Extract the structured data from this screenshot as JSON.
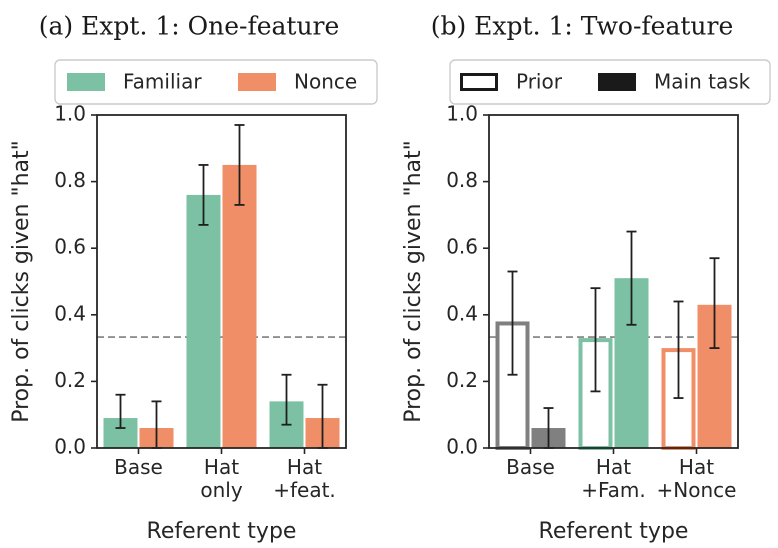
{
  "chart_data": [
    {
      "type": "bar",
      "title": "(a) Expt. 1: One-feature",
      "xlabel": "Referent type",
      "ylabel": "Prop. of clicks given \"hat\"",
      "ylim": [
        0,
        1
      ],
      "yticks": [
        "0.0",
        "0.2",
        "0.4",
        "0.6",
        "0.8",
        "1.0"
      ],
      "categories": [
        [
          "Base"
        ],
        [
          "Hat",
          "only"
        ],
        [
          "Hat",
          "+feat."
        ]
      ],
      "reference_line": 0.333,
      "legend_position": "top",
      "series": [
        {
          "name": "Familiar",
          "color": "#7cc1a4",
          "values": [
            0.09,
            0.76,
            0.14
          ],
          "error_low": [
            0.06,
            0.67,
            0.07
          ],
          "error_high": [
            0.16,
            0.85,
            0.22
          ]
        },
        {
          "name": "Nonce",
          "color": "#ef8e67",
          "values": [
            0.06,
            0.85,
            0.09
          ],
          "error_low": [
            0.0,
            0.73,
            0.0
          ],
          "error_high": [
            0.14,
            0.97,
            0.19
          ]
        }
      ]
    },
    {
      "type": "bar",
      "title": "(b) Expt. 1: Two-feature",
      "xlabel": "Referent type",
      "ylabel": "Prop. of clicks given \"hat\"",
      "ylim": [
        0,
        1
      ],
      "yticks": [
        "0.0",
        "0.2",
        "0.4",
        "0.6",
        "0.8",
        "1.0"
      ],
      "categories": [
        [
          "Base"
        ],
        [
          "Hat",
          "+Fam."
        ],
        [
          "Hat",
          "+Nonce"
        ]
      ],
      "reference_line": 0.333,
      "legend_position": "top",
      "legend": [
        {
          "name": "Prior",
          "style": "outline"
        },
        {
          "name": "Main task",
          "style": "filled"
        }
      ],
      "series": [
        {
          "name": "Prior",
          "style": "outline",
          "colors": [
            "#808080",
            "#7cc1a4",
            "#ef8e67"
          ],
          "values": [
            0.38,
            0.33,
            0.3
          ],
          "error_low": [
            0.22,
            0.17,
            0.15
          ],
          "error_high": [
            0.53,
            0.48,
            0.44
          ]
        },
        {
          "name": "Main task",
          "style": "filled",
          "colors": [
            "#808080",
            "#7cc1a4",
            "#ef8e67"
          ],
          "values": [
            0.06,
            0.51,
            0.43
          ],
          "error_low": [
            0.0,
            0.37,
            0.3
          ],
          "error_high": [
            0.12,
            0.65,
            0.57
          ]
        }
      ]
    }
  ]
}
